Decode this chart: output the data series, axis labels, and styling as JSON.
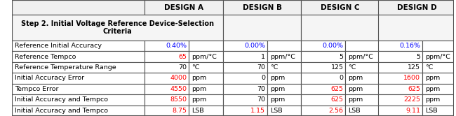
{
  "headers": [
    "",
    "DESIGN A",
    "",
    "DESIGN B",
    "",
    "DESIGN C",
    "",
    "DESIGN D",
    ""
  ],
  "col_headers": [
    "DESIGN A",
    "DESIGN B",
    "DESIGN C",
    "DESIGN D"
  ],
  "step_label": "Step 2. Initial Voltage Reference Device-Selection\nCriteria",
  "row_labels": [
    "Reference Initial Accuracy",
    "Reference Tempco",
    "Reference Temperature Range",
    "Initial Accuracy Error",
    "Tempco Error",
    "Initial Accuracy and Tempco",
    "Initial Accuracy and Tempco"
  ],
  "data": [
    [
      "0.40%",
      "",
      "0.00%",
      "",
      "0.00%",
      "",
      "0.16%",
      ""
    ],
    [
      "65",
      "ppm/°C",
      "1",
      "ppm/°C",
      "5",
      "ppm/°C",
      "5",
      "ppm/°C"
    ],
    [
      "70",
      "°C",
      "70",
      "°C",
      "125",
      "°C",
      "125",
      "°C"
    ],
    [
      "4000",
      "ppm",
      "0",
      "ppm",
      "0",
      "ppm",
      "1600",
      "ppm"
    ],
    [
      "4550",
      "ppm",
      "70",
      "ppm",
      "625",
      "ppm",
      "625",
      "ppm"
    ],
    [
      "8550",
      "ppm",
      "70",
      "ppm",
      "625",
      "ppm",
      "2225",
      "ppm"
    ],
    [
      "8.75",
      "LSB",
      "1.15",
      "LSB",
      "2.56",
      "LSB",
      "9.11",
      "LSB"
    ]
  ],
  "value_colors": [
    [
      "blue",
      "",
      "blue",
      "",
      "blue",
      "",
      "blue",
      ""
    ],
    [
      "red",
      "black",
      "black",
      "black",
      "black",
      "black",
      "black",
      "black"
    ],
    [
      "black",
      "black",
      "black",
      "black",
      "black",
      "black",
      "black",
      "black"
    ],
    [
      "red",
      "black",
      "black",
      "black",
      "black",
      "black",
      "red",
      "black"
    ],
    [
      "red",
      "black",
      "black",
      "black",
      "red",
      "black",
      "red",
      "black"
    ],
    [
      "red",
      "black",
      "black",
      "black",
      "red",
      "black",
      "red",
      "black"
    ],
    [
      "red",
      "black",
      "red",
      "black",
      "red",
      "black",
      "red",
      "black"
    ]
  ],
  "bg_color": "#ffffff",
  "header_bg": "#e8e8e8",
  "step_bg": "#f0f0f0",
  "border_color": "#555555",
  "header_font_size": 7.5,
  "data_font_size": 6.8
}
